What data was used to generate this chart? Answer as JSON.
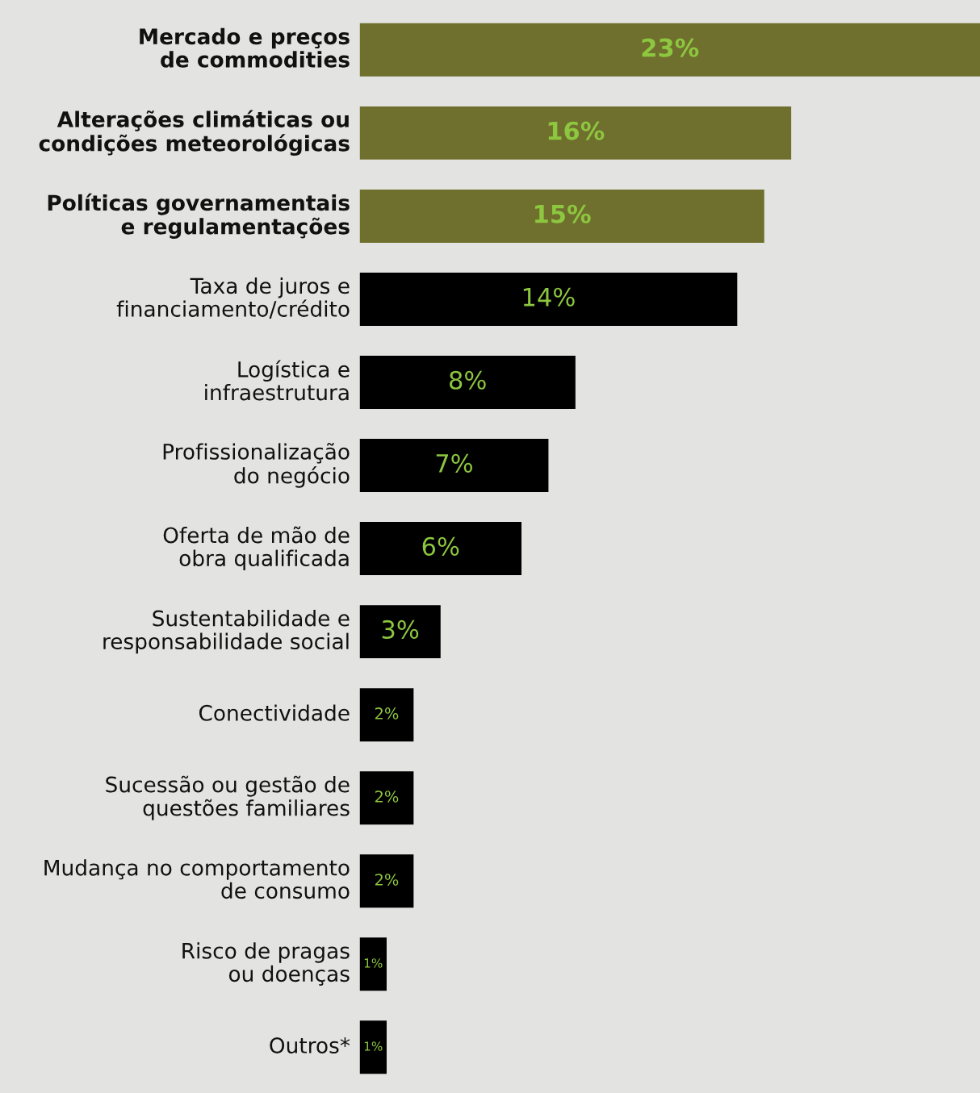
{
  "chart_data": {
    "type": "bar",
    "orientation": "horizontal",
    "categories": [
      "Mercado e preços\nde commodities",
      "Alterações climáticas ou\ncondições meteorológicas",
      "Políticas governamentais\ne regulamentações",
      "Taxa de juros e\nfinanciamento/crédito",
      "Logística e\ninfraestrutura",
      "Profissionalização\ndo negócio",
      "Oferta de mão de\nobra qualificada",
      "Sustentabilidade e\nresponsabilidade social",
      "Conectividade",
      "Sucessão ou gestão de\nquestões familiares",
      "Mudança no comportamento\nde consumo",
      "Risco de pragas\nou doenças",
      "Outros*"
    ],
    "values": [
      23,
      16,
      15,
      14,
      8,
      7,
      6,
      3,
      2,
      2,
      2,
      1,
      1
    ],
    "colors": [
      "#6f6f2e",
      "#6f6f2e",
      "#6f6f2e",
      "#000000",
      "#000000",
      "#000000",
      "#000000",
      "#000000",
      "#000000",
      "#000000",
      "#000000",
      "#000000",
      "#000000"
    ],
    "value_labels": [
      "23%",
      "16%",
      "15%",
      "14%",
      "8%",
      "7%",
      "6%",
      "3%",
      "2%",
      "2%",
      "2%",
      "1%",
      "1%"
    ],
    "stacked": false
  }
}
